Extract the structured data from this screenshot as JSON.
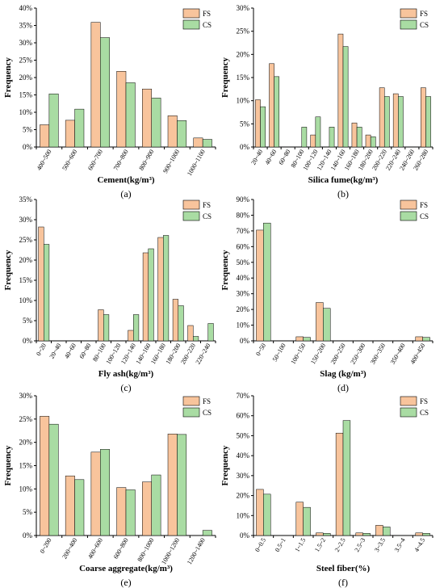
{
  "colors": {
    "fs": "#F8C49C",
    "cs": "#A9DCA3",
    "edge": "#000000"
  },
  "chart_data": [
    {
      "type": "bar",
      "panel_label": "(a)",
      "xlabel": "Cement(kg/m³)",
      "ylabel": "Frequency",
      "ylim": [
        0,
        40
      ],
      "yticks": [
        "0%",
        "5%",
        "10%",
        "15%",
        "20%",
        "25%",
        "30%",
        "35%",
        "40%"
      ],
      "categories": [
        "400~500",
        "500~600",
        "600~700",
        "700~800",
        "800~900",
        "900~1000",
        "1000~1100"
      ],
      "series": [
        {
          "name": "FS",
          "values": [
            6.4,
            7.7,
            35.9,
            21.8,
            16.7,
            9.0,
            2.6
          ]
        },
        {
          "name": "CS",
          "values": [
            15.3,
            10.9,
            31.5,
            18.5,
            14.1,
            7.6,
            2.2
          ]
        }
      ],
      "legend": "top-right"
    },
    {
      "type": "bar",
      "panel_label": "(b)",
      "xlabel": "Silica fume(kg/m³)",
      "ylabel": "Frequency",
      "ylim": [
        0,
        30
      ],
      "yticks": [
        "0%",
        "5%",
        "10%",
        "15%",
        "20%",
        "25%",
        "30%"
      ],
      "categories": [
        "20~40",
        "40~60",
        "60~80",
        "80~100",
        "100~120",
        "120~140",
        "140~160",
        "160~180",
        "180~200",
        "200~220",
        "220~240",
        "240~260",
        "260~280"
      ],
      "series": [
        {
          "name": "FS",
          "values": [
            10.2,
            18.0,
            0,
            0,
            2.6,
            0,
            24.4,
            5.2,
            2.6,
            12.8,
            11.5,
            0,
            12.8
          ]
        },
        {
          "name": "CS",
          "values": [
            8.7,
            15.2,
            0,
            4.3,
            6.5,
            4.3,
            21.7,
            4.3,
            2.2,
            10.9,
            10.9,
            0,
            10.9
          ]
        }
      ],
      "legend": "top-right"
    },
    {
      "type": "bar",
      "panel_label": "(c)",
      "xlabel": "Fly ash(kg/m³)",
      "ylabel": "Frequency",
      "ylim": [
        0,
        35
      ],
      "yticks": [
        "0%",
        "5%",
        "10%",
        "15%",
        "20%",
        "25%",
        "30%",
        "35%"
      ],
      "categories": [
        "0~20",
        "20~40",
        "40~60",
        "60~80",
        "80~100",
        "100~120",
        "120~140",
        "140~160",
        "160~180",
        "180~200",
        "200~220",
        "220~240"
      ],
      "series": [
        {
          "name": "FS",
          "values": [
            28.2,
            0,
            0,
            0,
            7.7,
            0,
            2.6,
            21.8,
            25.6,
            10.3,
            3.8,
            0
          ]
        },
        {
          "name": "CS",
          "values": [
            23.9,
            0,
            0,
            0,
            6.5,
            0,
            6.5,
            22.8,
            26.1,
            8.7,
            1.1,
            4.3
          ]
        }
      ],
      "legend": "top-right"
    },
    {
      "type": "bar",
      "panel_label": "(d)",
      "xlabel": "Slag (kg/m³)",
      "ylabel": "Frequency",
      "ylim": [
        0,
        90
      ],
      "yticks": [
        "0%",
        "10%",
        "20%",
        "30%",
        "40%",
        "50%",
        "60%",
        "70%",
        "80%",
        "90%"
      ],
      "categories": [
        "0~50",
        "50~100",
        "100~150",
        "150~200",
        "200~250",
        "250~300",
        "300~350",
        "350~400",
        "400~450"
      ],
      "series": [
        {
          "name": "FS",
          "values": [
            70.5,
            0,
            2.6,
            24.4,
            0,
            0,
            0,
            0,
            2.6
          ]
        },
        {
          "name": "CS",
          "values": [
            75.0,
            0,
            2.2,
            20.7,
            0,
            0,
            0,
            0,
            2.2
          ]
        }
      ],
      "legend": "top-right"
    },
    {
      "type": "bar",
      "panel_label": "(e)",
      "xlabel": "Coarse aggregate(kg/m³)",
      "ylabel": "Frequency",
      "ylim": [
        0,
        30
      ],
      "yticks": [
        "0%",
        "5%",
        "10%",
        "15%",
        "20%",
        "25%",
        "30%"
      ],
      "categories": [
        "0~200",
        "200~400",
        "400~600",
        "600~800",
        "800~1000",
        "1000~1200",
        "1200~1400"
      ],
      "series": [
        {
          "name": "FS",
          "values": [
            25.6,
            12.8,
            17.9,
            10.3,
            11.5,
            21.8,
            0
          ]
        },
        {
          "name": "CS",
          "values": [
            23.9,
            12.0,
            18.5,
            9.8,
            13.0,
            21.7,
            1.1
          ]
        }
      ],
      "legend": "top-right"
    },
    {
      "type": "bar",
      "panel_label": "(f)",
      "xlabel": "Steel fiber(%)",
      "ylabel": "Frequency",
      "ylim": [
        0,
        70
      ],
      "yticks": [
        "0%",
        "10%",
        "20%",
        "30%",
        "40%",
        "50%",
        "60%",
        "70%"
      ],
      "categories": [
        "0~0.5",
        "0.5~1",
        "1~1.5",
        "1.5~2",
        "2~2.5",
        "2.5~3",
        "3~3.5",
        "3.5~4",
        "4~4.5"
      ],
      "series": [
        {
          "name": "FS",
          "values": [
            23.1,
            0,
            16.7,
            1.3,
            51.3,
            1.3,
            5.1,
            0,
            1.3
          ]
        },
        {
          "name": "CS",
          "values": [
            20.7,
            0,
            14.1,
            1.1,
            57.6,
            1.1,
            4.3,
            0,
            1.1
          ]
        }
      ],
      "legend": "top-right"
    }
  ]
}
